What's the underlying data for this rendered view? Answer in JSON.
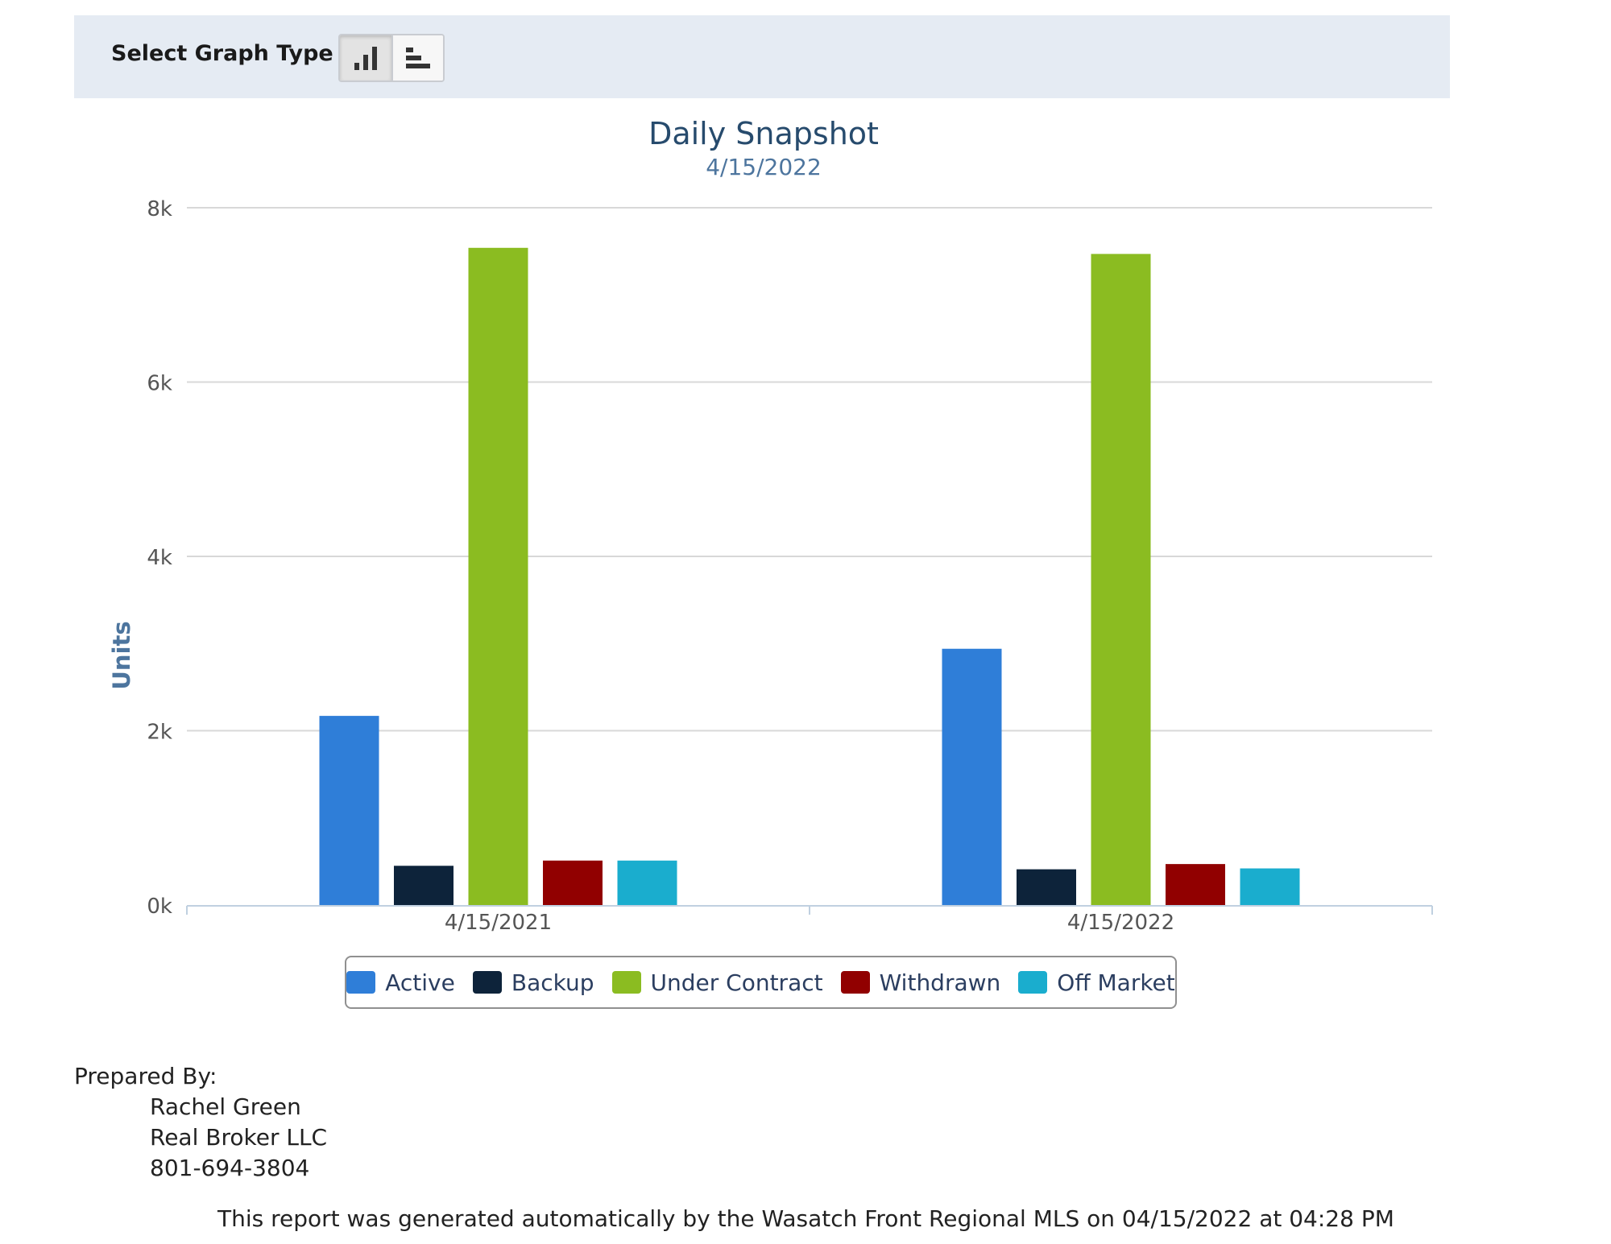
{
  "toolbar": {
    "label": "Select Graph Type",
    "buttons": [
      {
        "icon": "column-chart-icon",
        "active": true
      },
      {
        "icon": "bar-chart-icon",
        "active": false
      }
    ]
  },
  "chart_data": {
    "type": "bar",
    "title": "Daily Snapshot",
    "subtitle": "4/15/2022",
    "xlabel": "",
    "ylabel": "Units",
    "ylim": [
      0,
      8000
    ],
    "yticks": [
      "0k",
      "2k",
      "4k",
      "6k",
      "8k"
    ],
    "grid": true,
    "legend_position": "bottom",
    "categories": [
      "4/15/2021",
      "4/15/2022"
    ],
    "series": [
      {
        "name": "Active",
        "color": "#2f7ed8",
        "values": [
          2170,
          2940
        ]
      },
      {
        "name": "Backup",
        "color": "#0d233a",
        "values": [
          450,
          410
        ]
      },
      {
        "name": "Under Contract",
        "color": "#8bbc21",
        "values": [
          7540,
          7470
        ]
      },
      {
        "name": "Withdrawn",
        "color": "#910000",
        "values": [
          510,
          470
        ]
      },
      {
        "name": "Off Market",
        "color": "#1aadce",
        "values": [
          510,
          420
        ]
      }
    ]
  },
  "prepared_by": {
    "label": "Prepared By:",
    "name": "Rachel Green",
    "company": "Real Broker LLC",
    "phone": "801-694-3804"
  },
  "footer_note": "This report was generated automatically by the Wasatch Front Regional MLS on 04/15/2022 at 04:28 PM"
}
